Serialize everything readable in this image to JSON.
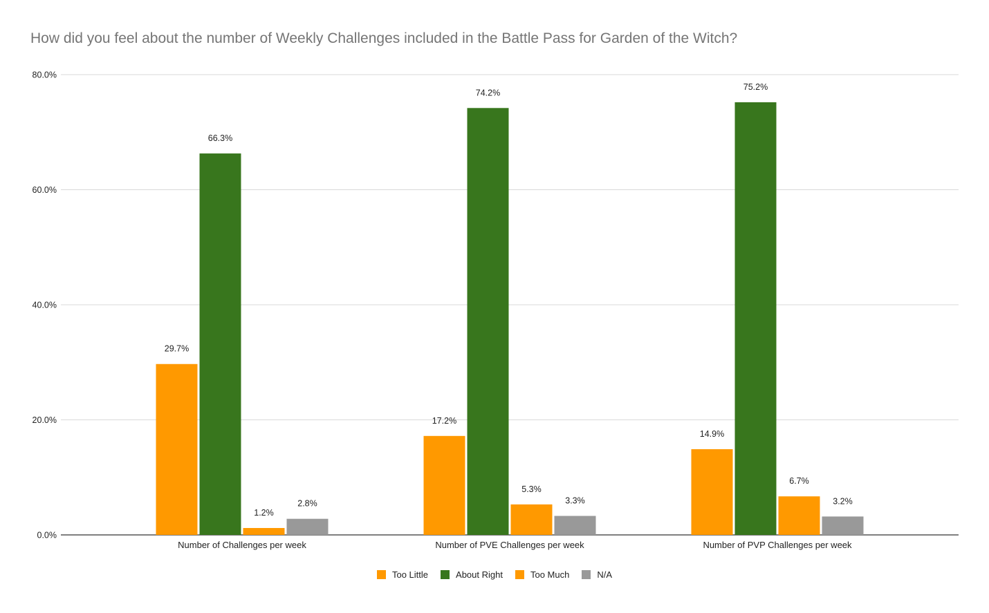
{
  "chart_data": {
    "type": "bar",
    "title": "How did you feel about the number of Weekly Challenges included in the Battle Pass for Garden of the Witch?",
    "xlabel": "",
    "ylabel": "",
    "categories": [
      "Number of Challenges per week",
      "Number of PVE Challenges per week",
      "Number of PVP Challenges per week"
    ],
    "series": [
      {
        "name": "Too Little",
        "color": "#FF9900",
        "values": [
          29.7,
          17.2,
          14.9
        ],
        "labels": [
          "29.7%",
          "17.2%",
          "14.9%"
        ]
      },
      {
        "name": "About Right",
        "color": "#38761D",
        "values": [
          66.3,
          74.2,
          75.2
        ],
        "labels": [
          "66.3%",
          "74.2%",
          "75.2%"
        ]
      },
      {
        "name": "Too Much",
        "color": "#FF9900",
        "values": [
          1.2,
          5.3,
          6.7
        ],
        "labels": [
          "1.2%",
          "5.3%",
          "6.7%"
        ]
      },
      {
        "name": "N/A",
        "color": "#999999",
        "values": [
          2.8,
          3.3,
          3.2
        ],
        "labels": [
          "2.8%",
          "3.3%",
          "3.2%"
        ]
      }
    ],
    "ylim": [
      0,
      80
    ],
    "yticks": [
      0,
      20,
      40,
      60,
      80
    ],
    "ytick_labels": [
      "0.0%",
      "20.0%",
      "40.0%",
      "60.0%",
      "80.0%"
    ],
    "grid": true,
    "legend_position": "bottom"
  }
}
